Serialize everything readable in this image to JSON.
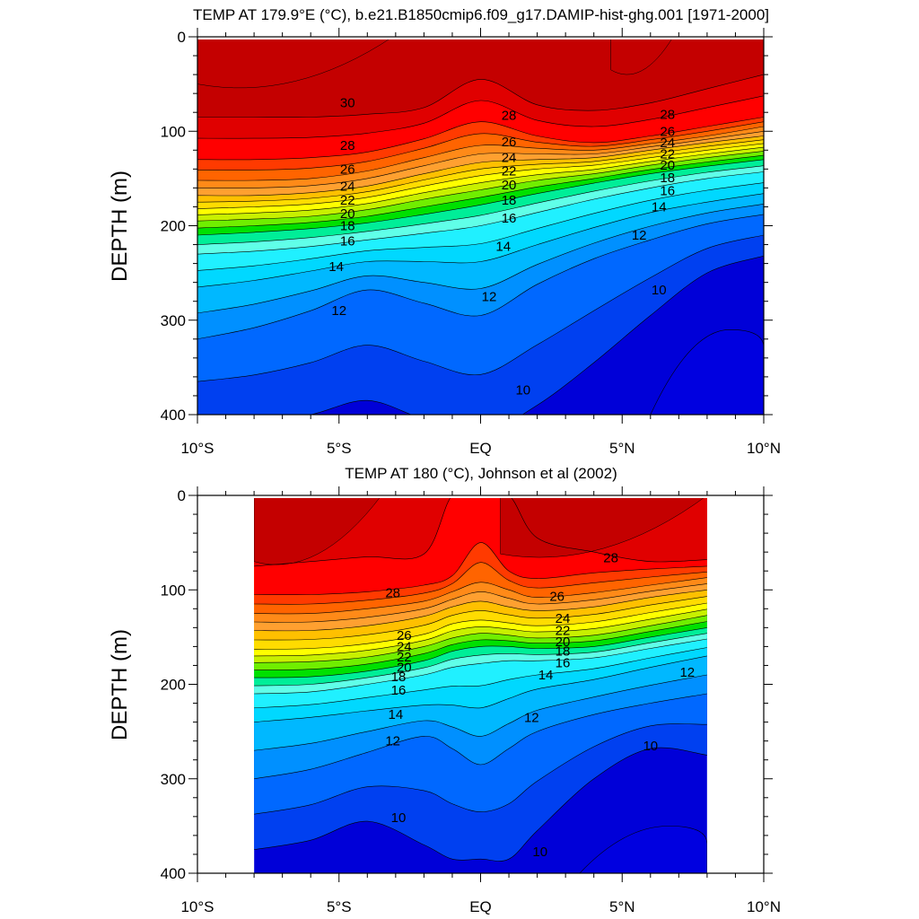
{
  "chart_data": [
    {
      "type": "contour",
      "title": "TEMP AT 179.9°E (°C), b.e21.B1850cmip6.f09_g17.DAMIP-hist-ghg.001 [1971-2000]",
      "ylabel": "DEPTH (m)",
      "xlabel": "",
      "x_ticks": [
        "10°S",
        "5°S",
        "EQ",
        "5°N",
        "10°N"
      ],
      "x_tick_values": [
        -10,
        -5,
        0,
        5,
        10
      ],
      "y_ticks": [
        "0",
        "100",
        "200",
        "300",
        "400"
      ],
      "y_tick_values": [
        0,
        100,
        200,
        300,
        400
      ],
      "xlim": [
        -10,
        10
      ],
      "ylim": [
        400,
        0
      ],
      "data_xlim": [
        -10,
        10
      ],
      "contour_levels": [
        10,
        11,
        12,
        13,
        14,
        15,
        16,
        17,
        18,
        19,
        20,
        21,
        22,
        23,
        24,
        25,
        26,
        27,
        28,
        29,
        30
      ],
      "x_samples": [
        -10,
        -8,
        -6,
        -4,
        -2,
        0,
        2,
        4,
        6,
        8,
        10
      ],
      "isotherm_depths": {
        "30": [
          85,
          85,
          85,
          82,
          75,
          45,
          72,
          78,
          70,
          55,
          40
        ],
        "28": [
          130,
          130,
          128,
          122,
          108,
          90,
          105,
          112,
          105,
          95,
          85
        ],
        "26": [
          152,
          152,
          150,
          142,
          128,
          115,
          118,
          120,
          113,
          105,
          95
        ],
        "24": [
          168,
          168,
          165,
          158,
          145,
          133,
          130,
          128,
          120,
          112,
          105
        ],
        "22": [
          182,
          180,
          177,
          170,
          158,
          147,
          140,
          136,
          128,
          120,
          113
        ],
        "20": [
          195,
          193,
          190,
          183,
          172,
          162,
          152,
          145,
          136,
          128,
          121
        ],
        "18": [
          210,
          207,
          203,
          197,
          188,
          178,
          166,
          155,
          145,
          137,
          130
        ],
        "16": [
          230,
          227,
          222,
          215,
          208,
          200,
          186,
          172,
          160,
          150,
          143
        ],
        "14": [
          265,
          258,
          248,
          238,
          238,
          238,
          220,
          202,
          186,
          175,
          166
        ],
        "12": [
          320,
          308,
          290,
          268,
          282,
          295,
          262,
          235,
          215,
          198,
          188
        ],
        "10": [
          410,
          408,
          400,
          385,
          405,
          420,
          390,
          345,
          295,
          250,
          232
        ]
      },
      "labels": [
        {
          "x": -4.7,
          "depth": 70,
          "text": "30"
        },
        {
          "x": -4.7,
          "depth": 115,
          "text": "28"
        },
        {
          "x": -4.7,
          "depth": 140,
          "text": "26"
        },
        {
          "x": -4.7,
          "depth": 158,
          "text": "24"
        },
        {
          "x": -4.7,
          "depth": 173,
          "text": "22"
        },
        {
          "x": -4.7,
          "depth": 187,
          "text": "20"
        },
        {
          "x": -4.7,
          "depth": 200,
          "text": "18"
        },
        {
          "x": -4.7,
          "depth": 216,
          "text": "16"
        },
        {
          "x": -5.1,
          "depth": 243,
          "text": "14"
        },
        {
          "x": -5.0,
          "depth": 290,
          "text": "12"
        },
        {
          "x": 1.0,
          "depth": 83,
          "text": "28"
        },
        {
          "x": 1.0,
          "depth": 111,
          "text": "26"
        },
        {
          "x": 1.0,
          "depth": 128,
          "text": "24"
        },
        {
          "x": 1.0,
          "depth": 142,
          "text": "22"
        },
        {
          "x": 1.0,
          "depth": 157,
          "text": "20"
        },
        {
          "x": 1.0,
          "depth": 173,
          "text": "18"
        },
        {
          "x": 1.0,
          "depth": 192,
          "text": "16"
        },
        {
          "x": 0.8,
          "depth": 222,
          "text": "14"
        },
        {
          "x": 0.3,
          "depth": 275,
          "text": "12"
        },
        {
          "x": 1.5,
          "depth": 374,
          "text": "10"
        },
        {
          "x": 6.6,
          "depth": 82,
          "text": "28"
        },
        {
          "x": 6.6,
          "depth": 100,
          "text": "26"
        },
        {
          "x": 6.6,
          "depth": 112,
          "text": "24"
        },
        {
          "x": 6.6,
          "depth": 124,
          "text": "22"
        },
        {
          "x": 6.6,
          "depth": 136,
          "text": "20"
        },
        {
          "x": 6.6,
          "depth": 149,
          "text": "18"
        },
        {
          "x": 6.6,
          "depth": 163,
          "text": "16"
        },
        {
          "x": 6.3,
          "depth": 180,
          "text": "14"
        },
        {
          "x": 5.6,
          "depth": 210,
          "text": "12"
        },
        {
          "x": 6.3,
          "depth": 268,
          "text": "10"
        }
      ],
      "warm_pools": [
        {
          "x_range": [
            -10,
            -3.1
          ],
          "depth": 50
        },
        {
          "x_range": [
            4.6,
            6.8
          ],
          "depth": 35
        }
      ],
      "cold_core": {
        "x_range": [
          6,
          10
        ],
        "depth": 310
      }
    },
    {
      "type": "contour",
      "title": "TEMP AT 180 (°C), Johnson et al (2002)",
      "ylabel": "DEPTH (m)",
      "xlabel": "",
      "x_ticks": [
        "10°S",
        "5°S",
        "EQ",
        "5°N",
        "10°N"
      ],
      "x_tick_values": [
        -10,
        -5,
        0,
        5,
        10
      ],
      "y_ticks": [
        "0",
        "100",
        "200",
        "300",
        "400"
      ],
      "y_tick_values": [
        0,
        100,
        200,
        300,
        400
      ],
      "xlim": [
        -10,
        10
      ],
      "ylim": [
        400,
        0
      ],
      "data_xlim": [
        -8,
        8
      ],
      "contour_levels": [
        10,
        11,
        12,
        13,
        14,
        15,
        16,
        17,
        18,
        19,
        20,
        21,
        22,
        23,
        24,
        25,
        26,
        27,
        28,
        29
      ],
      "x_samples": [
        -8,
        -6,
        -4,
        -2,
        -1,
        0,
        1,
        2,
        4,
        6,
        8
      ],
      "isotherm_depths": {
        "29": [
          75,
          70,
          65,
          62,
          0,
          0,
          0,
          45,
          60,
          70,
          68
        ],
        "28": [
          105,
          105,
          102,
          95,
          85,
          50,
          80,
          88,
          82,
          78,
          75
        ],
        "26": [
          125,
          125,
          120,
          112,
          102,
          92,
          100,
          108,
          103,
          95,
          87
        ],
        "24": [
          143,
          143,
          138,
          128,
          118,
          112,
          118,
          122,
          118,
          108,
          100
        ],
        "22": [
          163,
          162,
          157,
          147,
          136,
          132,
          135,
          138,
          134,
          124,
          114
        ],
        "20": [
          177,
          176,
          171,
          160,
          151,
          146,
          148,
          151,
          148,
          138,
          127
        ],
        "18": [
          193,
          192,
          186,
          175,
          165,
          160,
          160,
          162,
          160,
          150,
          140
        ],
        "16": [
          210,
          208,
          200,
          190,
          182,
          178,
          175,
          175,
          172,
          162,
          152
        ],
        "14": [
          240,
          235,
          228,
          222,
          222,
          225,
          215,
          205,
          195,
          182,
          170
        ],
        "12": [
          300,
          290,
          272,
          255,
          268,
          285,
          268,
          250,
          232,
          220,
          210
        ],
        "10": [
          375,
          365,
          345,
          370,
          385,
          385,
          385,
          355,
          300,
          268,
          275
        ]
      },
      "labels": [
        {
          "x": -3.1,
          "depth": 103,
          "text": "28"
        },
        {
          "x": -2.7,
          "depth": 148,
          "text": "26"
        },
        {
          "x": -2.7,
          "depth": 160,
          "text": "24"
        },
        {
          "x": -2.7,
          "depth": 171,
          "text": "22"
        },
        {
          "x": -2.7,
          "depth": 182,
          "text": "20"
        },
        {
          "x": -2.9,
          "depth": 192,
          "text": "18"
        },
        {
          "x": -2.9,
          "depth": 206,
          "text": "16"
        },
        {
          "x": -3.0,
          "depth": 232,
          "text": "14"
        },
        {
          "x": -3.1,
          "depth": 260,
          "text": "12"
        },
        {
          "x": -2.9,
          "depth": 341,
          "text": "10"
        },
        {
          "x": 4.6,
          "depth": 66,
          "text": "28"
        },
        {
          "x": 2.7,
          "depth": 107,
          "text": "26"
        },
        {
          "x": 2.9,
          "depth": 130,
          "text": "24"
        },
        {
          "x": 2.9,
          "depth": 143,
          "text": "22"
        },
        {
          "x": 2.9,
          "depth": 155,
          "text": "20"
        },
        {
          "x": 2.9,
          "depth": 165,
          "text": "18"
        },
        {
          "x": 2.9,
          "depth": 177,
          "text": "16"
        },
        {
          "x": 2.3,
          "depth": 190,
          "text": "14"
        },
        {
          "x": 1.8,
          "depth": 235,
          "text": "12"
        },
        {
          "x": 7.3,
          "depth": 187,
          "text": "12"
        },
        {
          "x": 6.0,
          "depth": 265,
          "text": "10"
        },
        {
          "x": 2.1,
          "depth": 377,
          "text": "10"
        }
      ],
      "warm_pools": [
        {
          "x_range": [
            -8,
            -3.5
          ],
          "depth": 70
        },
        {
          "x_range": [
            0.7,
            8
          ],
          "depth": 62
        }
      ],
      "cold_core": {
        "x_range": [
          3.5,
          8
        ],
        "depth": 350
      }
    }
  ]
}
